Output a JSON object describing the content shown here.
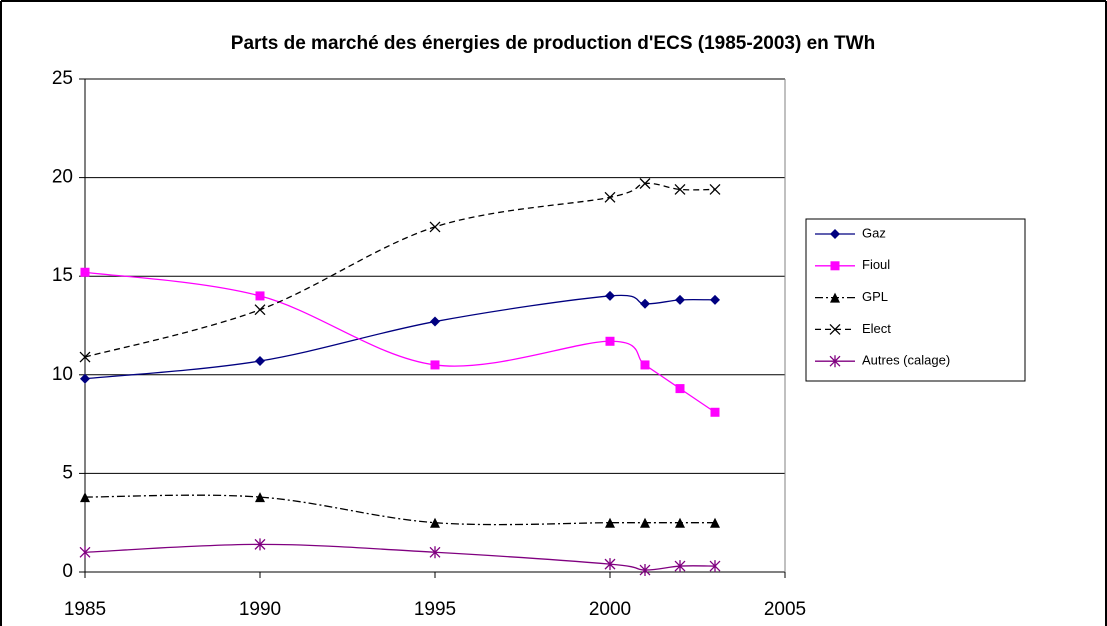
{
  "chart_data": {
    "type": "line",
    "title": "Parts de marché des énergies de production d'ECS (1985-2003) en TWh",
    "x": [
      1985,
      1990,
      1995,
      2000,
      2001,
      2002,
      2003
    ],
    "xlim": [
      1985,
      2005
    ],
    "xticks": [
      1985,
      1990,
      1995,
      2000,
      2005
    ],
    "ylim": [
      0,
      25
    ],
    "yticks": [
      0,
      5,
      10,
      15,
      20,
      25
    ],
    "grid": true,
    "smooth": true,
    "legend": "right",
    "series": [
      {
        "name": "Gaz",
        "color": "#000080",
        "marker": "diamond",
        "line_style": "solid",
        "values": [
          9.8,
          10.7,
          12.7,
          14.0,
          13.6,
          13.8,
          13.8
        ]
      },
      {
        "name": "Fioul",
        "color": "#ff00ff",
        "marker": "square",
        "line_style": "solid",
        "values": [
          15.2,
          14.0,
          10.5,
          11.7,
          10.5,
          9.3,
          8.1
        ]
      },
      {
        "name": "GPL",
        "color": "#000000",
        "marker": "triangle",
        "line_style": "dashdot",
        "values": [
          3.8,
          3.8,
          2.5,
          2.5,
          2.5,
          2.5,
          2.5
        ]
      },
      {
        "name": "Elect",
        "color": "#000000",
        "marker": "x",
        "line_style": "dashed",
        "values": [
          10.9,
          13.3,
          17.5,
          19.0,
          19.7,
          19.4,
          19.4
        ]
      },
      {
        "name": "Autres (calage)",
        "color": "#800080",
        "marker": "asterisk",
        "line_style": "solid",
        "values": [
          1.0,
          1.4,
          1.0,
          0.4,
          0.1,
          0.3,
          0.3
        ]
      }
    ]
  }
}
